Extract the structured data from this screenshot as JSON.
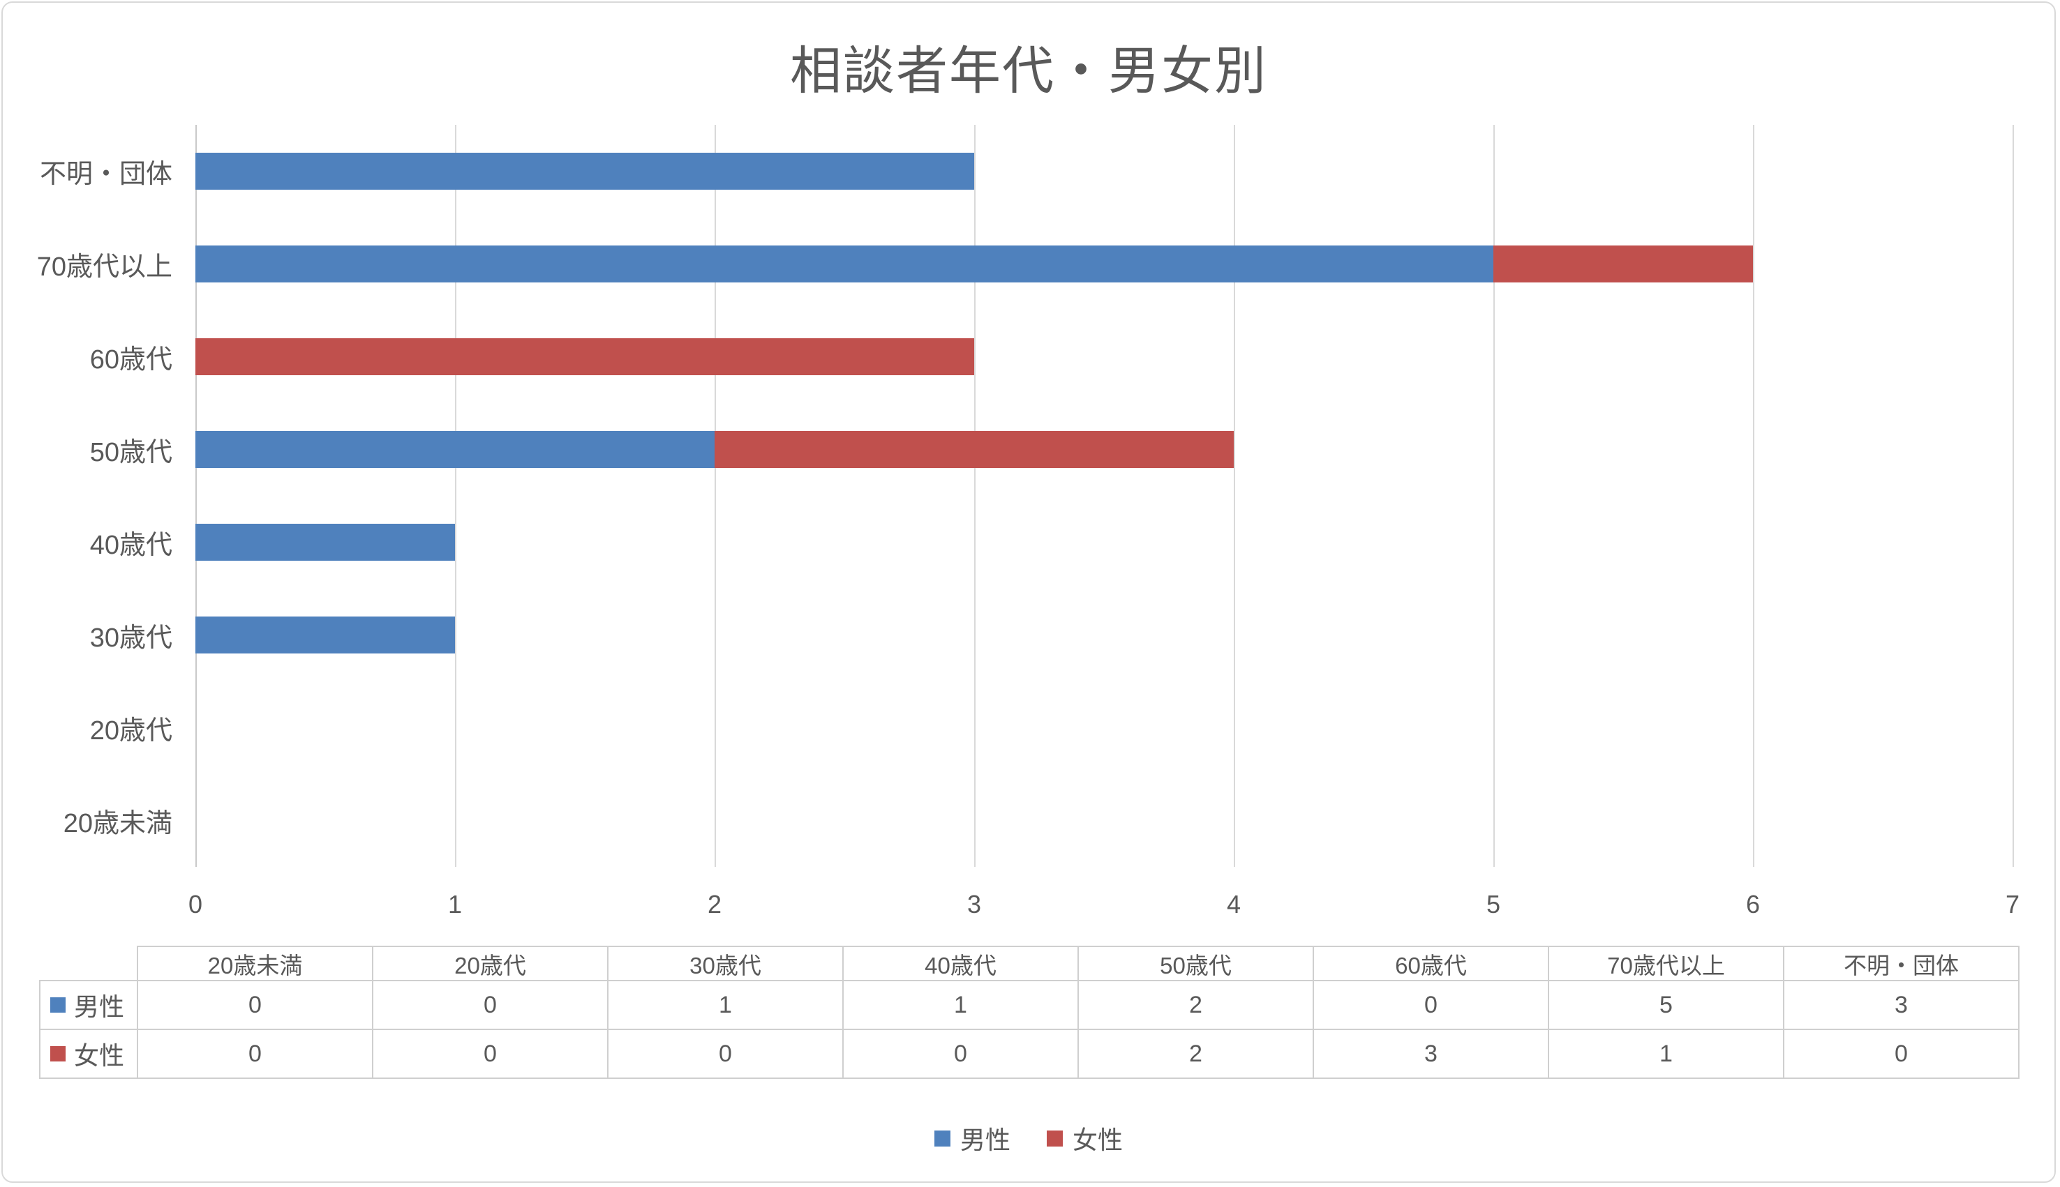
{
  "chart": {
    "colors": {
      "text": "#595959",
      "gridline": "#D9D9D9",
      "zero_gridline": "#C9C9C9",
      "table_border": "#CFCFCF",
      "frame_border": "#D9D9D9",
      "background": "#FFFFFF"
    }
  },
  "chart_data": {
    "type": "bar",
    "orientation": "horizontal",
    "stacked": true,
    "title": "相談者年代・男女別",
    "categories": [
      "20歳未満",
      "20歳代",
      "30歳代",
      "40歳代",
      "50歳代",
      "60歳代",
      "70歳代以上",
      "不明・団体"
    ],
    "rows_top_to_bottom": [
      "不明・団体",
      "70歳代以上",
      "60歳代",
      "50歳代",
      "40歳代",
      "30歳代",
      "20歳代",
      "20歳未満"
    ],
    "series": [
      {
        "name": "男性",
        "color": "#4F81BD",
        "values": [
          0,
          0,
          1,
          1,
          2,
          0,
          5,
          3
        ]
      },
      {
        "name": "女性",
        "color": "#C0504D",
        "values": [
          0,
          0,
          0,
          0,
          2,
          3,
          1,
          0
        ]
      }
    ],
    "xlabel": "",
    "ylabel": "",
    "xlim": [
      0,
      7
    ],
    "x_ticks": [
      0,
      1,
      2,
      3,
      4,
      5,
      6,
      7
    ],
    "grid": true,
    "legend_position": "bottom",
    "data_table": {
      "shown": true,
      "show_legend_keys": true
    }
  }
}
